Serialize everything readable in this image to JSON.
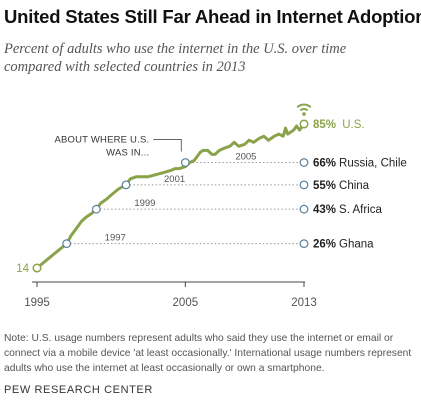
{
  "header": {
    "title": "United States Still Far Ahead in Internet Adoption",
    "subtitle_line1": "Percent of adults who use the internet in the U.S. over time",
    "subtitle_line2": "compared with selected countries in 2013"
  },
  "chart_data": {
    "type": "line",
    "x_ticks": [
      "1995",
      "2005",
      "2013"
    ],
    "series": [
      {
        "x": [
          1995,
          1995.5,
          1996,
          1996.5,
          1997,
          1997.3,
          1997.6,
          1998,
          1998.3,
          1998.7,
          1999,
          1999.3,
          1999.7,
          2000,
          2000.5,
          2001,
          2001.3,
          2001.7,
          2002,
          2002.5,
          2003,
          2003.5,
          2004,
          2004.3,
          2004.6,
          2005,
          2005.3,
          2005.6,
          2006,
          2006.2,
          2006.5,
          2006.8,
          2007,
          2007.3,
          2007.6,
          2008,
          2008.3,
          2008.6,
          2009,
          2009.3,
          2009.6,
          2010,
          2010.3,
          2010.6,
          2011,
          2011.3,
          2011.6,
          2011.75,
          2011.9,
          2012.1,
          2012.3,
          2012.5,
          2012.7,
          2013
        ],
        "values": [
          14,
          17,
          20,
          23,
          26,
          30,
          33,
          37,
          39,
          41,
          43,
          46,
          48,
          50,
          53,
          55,
          58,
          59,
          59,
          59,
          60,
          61,
          62,
          63,
          63,
          64,
          66,
          67,
          71,
          72,
          72,
          70,
          70,
          72,
          73,
          74,
          76,
          74,
          75,
          77,
          76,
          78,
          79,
          77,
          79,
          80,
          79,
          83,
          80,
          81,
          82,
          84,
          82,
          85
        ]
      }
    ],
    "points": [
      {
        "x": 1997,
        "y": 26,
        "year_label": "1997",
        "country_label": "Ghana",
        "value_label": "26%"
      },
      {
        "x": 1999,
        "y": 43,
        "year_label": "1999",
        "country_label": "S. Africa",
        "value_label": "43%"
      },
      {
        "x": 2001,
        "y": 55,
        "year_label": "2001",
        "country_label": "China",
        "value_label": "55%"
      },
      {
        "x": 2005,
        "y": 66,
        "year_label": "2005",
        "country_label": "Russia, Chile",
        "value_label": "66%"
      }
    ],
    "start_label": "14",
    "us_end": {
      "x": 2013,
      "y": 85,
      "value_label": "85%",
      "name": "U.S."
    },
    "annotation_line1": "ABOUT WHERE U.S.",
    "annotation_line2": "WAS IN...",
    "colors": {
      "us_line": "#8aa34a",
      "marker_stroke": "#5b7f9a",
      "dotted": "#9a9a9a",
      "axis": "#444444",
      "text": "#222222"
    },
    "icon": "wifi-icon"
  },
  "footer": {
    "note": "Note: U.S. usage numbers represent adults who said they use the internet or email or connect via a mobile device 'at least occasionally.' International usage numbers represent adults who use the internet at least occasionally or own a smartphone.",
    "source": "PEW RESEARCH CENTER"
  }
}
